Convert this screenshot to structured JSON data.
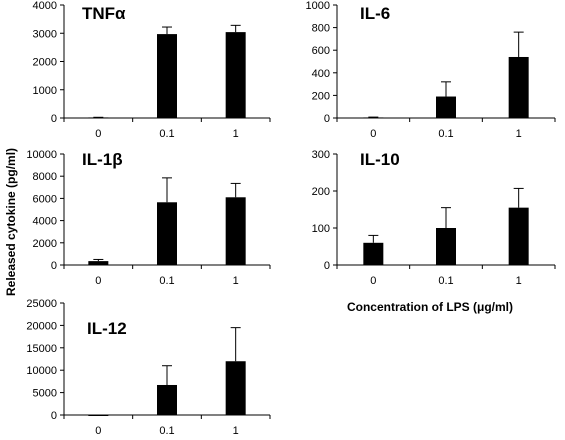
{
  "figure": {
    "ylabel": "Released cytokine (pg/ml)",
    "xlabel": "Concentration of LPS (μg/ml)"
  },
  "chart_data": [
    {
      "type": "bar",
      "title": "TNFα",
      "categories": [
        "0",
        "0.1",
        "1"
      ],
      "values": [
        20,
        2970,
        3040
      ],
      "errors": [
        5,
        250,
        240
      ],
      "yticks": [
        0,
        1000,
        2000,
        3000,
        4000
      ],
      "ylim": [
        0,
        4000
      ],
      "color": "#000000"
    },
    {
      "type": "bar",
      "title": "IL-6",
      "categories": [
        "0",
        "0.1",
        "1"
      ],
      "values": [
        5,
        190,
        540
      ],
      "errors": [
        3,
        130,
        220
      ],
      "yticks": [
        0,
        200,
        400,
        600,
        800,
        1000
      ],
      "ylim": [
        0,
        1000
      ],
      "color": "#000000"
    },
    {
      "type": "bar",
      "title": "IL-1β",
      "categories": [
        "0",
        "0.1",
        "1"
      ],
      "values": [
        350,
        5650,
        6100
      ],
      "errors": [
        150,
        2200,
        1250
      ],
      "yticks": [
        0,
        2000,
        4000,
        6000,
        8000,
        10000
      ],
      "ylim": [
        0,
        10000
      ],
      "color": "#000000"
    },
    {
      "type": "bar",
      "title": "IL-10",
      "categories": [
        "0",
        "0.1",
        "1"
      ],
      "values": [
        60,
        100,
        155
      ],
      "errors": [
        20,
        55,
        52
      ],
      "yticks": [
        0,
        100,
        200,
        300
      ],
      "ylim": [
        0,
        300
      ],
      "color": "#000000"
    },
    {
      "type": "bar",
      "title": "IL-12",
      "categories": [
        "0",
        "0.1",
        "1"
      ],
      "values": [
        0,
        6700,
        12000
      ],
      "errors": [
        0,
        4300,
        7500
      ],
      "yticks": [
        0,
        5000,
        10000,
        15000,
        20000,
        25000
      ],
      "ylim": [
        0,
        25000
      ],
      "color": "#000000"
    }
  ]
}
